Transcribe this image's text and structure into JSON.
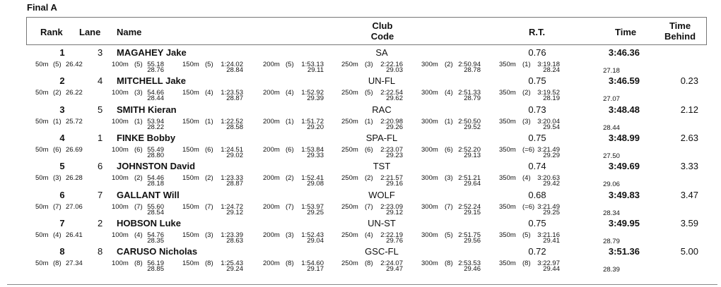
{
  "title": "Final A",
  "headers": {
    "rank": "Rank",
    "lane": "Lane",
    "name": "Name",
    "club_line1": "Club",
    "club_line2": "Code",
    "rt": "R.T.",
    "time": "Time",
    "behind_line1": "Time",
    "behind_line2": "Behind"
  },
  "results": [
    {
      "rank": "1",
      "lane": "3",
      "name": "MAGAHEY Jake",
      "club": "SA",
      "rt": "0.76",
      "time": "3:46.36",
      "behind": "",
      "final_split": "27.18",
      "splits": [
        {
          "label": "50m",
          "pos": "(5)",
          "time": "26.42",
          "lap": ""
        },
        {
          "label": "100m",
          "pos": "(5)",
          "time": "55.18",
          "lap": "28.76"
        },
        {
          "label": "150m",
          "pos": "(5)",
          "time": "1:24.02",
          "lap": "28.84"
        },
        {
          "label": "200m",
          "pos": "(5)",
          "time": "1:53.13",
          "lap": "29.11"
        },
        {
          "label": "250m",
          "pos": "(3)",
          "time": "2:22.16",
          "lap": "29.03"
        },
        {
          "label": "300m",
          "pos": "(2)",
          "time": "2:50.94",
          "lap": "28.78"
        },
        {
          "label": "350m",
          "pos": "(1)",
          "time": "3:19.18",
          "lap": "28.24"
        }
      ]
    },
    {
      "rank": "2",
      "lane": "4",
      "name": "MITCHELL Jake",
      "club": "UN-FL",
      "rt": "0.75",
      "time": "3:46.59",
      "behind": "0.23",
      "final_split": "27.07",
      "splits": [
        {
          "label": "50m",
          "pos": "(2)",
          "time": "26.22",
          "lap": ""
        },
        {
          "label": "100m",
          "pos": "(3)",
          "time": "54.66",
          "lap": "28.44"
        },
        {
          "label": "150m",
          "pos": "(4)",
          "time": "1:23.53",
          "lap": "28.87"
        },
        {
          "label": "200m",
          "pos": "(4)",
          "time": "1:52.92",
          "lap": "29.39"
        },
        {
          "label": "250m",
          "pos": "(5)",
          "time": "2:22.54",
          "lap": "29.62"
        },
        {
          "label": "300m",
          "pos": "(4)",
          "time": "2:51.33",
          "lap": "28.79"
        },
        {
          "label": "350m",
          "pos": "(2)",
          "time": "3:19.52",
          "lap": "28.19"
        }
      ]
    },
    {
      "rank": "3",
      "lane": "5",
      "name": "SMITH Kieran",
      "club": "RAC",
      "rt": "0.73",
      "time": "3:48.48",
      "behind": "2.12",
      "final_split": "28.44",
      "splits": [
        {
          "label": "50m",
          "pos": "(1)",
          "time": "25.72",
          "lap": ""
        },
        {
          "label": "100m",
          "pos": "(1)",
          "time": "53.94",
          "lap": "28.22"
        },
        {
          "label": "150m",
          "pos": "(1)",
          "time": "1:22.52",
          "lap": "28.58"
        },
        {
          "label": "200m",
          "pos": "(1)",
          "time": "1:51.72",
          "lap": "29.20"
        },
        {
          "label": "250m",
          "pos": "(1)",
          "time": "2:20.98",
          "lap": "29.26"
        },
        {
          "label": "300m",
          "pos": "(1)",
          "time": "2:50.50",
          "lap": "29.52"
        },
        {
          "label": "350m",
          "pos": "(3)",
          "time": "3:20.04",
          "lap": "29.54"
        }
      ]
    },
    {
      "rank": "4",
      "lane": "1",
      "name": "FINKE Bobby",
      "club": "SPA-FL",
      "rt": "0.75",
      "time": "3:48.99",
      "behind": "2.63",
      "final_split": "27.50",
      "splits": [
        {
          "label": "50m",
          "pos": "(6)",
          "time": "26.69",
          "lap": ""
        },
        {
          "label": "100m",
          "pos": "(6)",
          "time": "55.49",
          "lap": "28.80"
        },
        {
          "label": "150m",
          "pos": "(6)",
          "time": "1:24.51",
          "lap": "29.02"
        },
        {
          "label": "200m",
          "pos": "(6)",
          "time": "1:53.84",
          "lap": "29.33"
        },
        {
          "label": "250m",
          "pos": "(6)",
          "time": "2:23.07",
          "lap": "29.23"
        },
        {
          "label": "300m",
          "pos": "(6)",
          "time": "2:52.20",
          "lap": "29.13"
        },
        {
          "label": "350m",
          "pos": "(=6)",
          "time": "3:21.49",
          "lap": "29.29"
        }
      ]
    },
    {
      "rank": "5",
      "lane": "6",
      "name": "JOHNSTON David",
      "club": "TST",
      "rt": "0.74",
      "time": "3:49.69",
      "behind": "3.33",
      "final_split": "29.06",
      "splits": [
        {
          "label": "50m",
          "pos": "(3)",
          "time": "26.28",
          "lap": ""
        },
        {
          "label": "100m",
          "pos": "(2)",
          "time": "54.46",
          "lap": "28.18"
        },
        {
          "label": "150m",
          "pos": "(2)",
          "time": "1:23.33",
          "lap": "28.87"
        },
        {
          "label": "200m",
          "pos": "(2)",
          "time": "1:52.41",
          "lap": "29.08"
        },
        {
          "label": "250m",
          "pos": "(2)",
          "time": "2:21.57",
          "lap": "29.16"
        },
        {
          "label": "300m",
          "pos": "(3)",
          "time": "2:51.21",
          "lap": "29.64"
        },
        {
          "label": "350m",
          "pos": "(4)",
          "time": "3:20.63",
          "lap": "29.42"
        }
      ]
    },
    {
      "rank": "6",
      "lane": "7",
      "name": "GALLANT Will",
      "club": "WOLF",
      "rt": "0.68",
      "time": "3:49.83",
      "behind": "3.47",
      "final_split": "28.34",
      "splits": [
        {
          "label": "50m",
          "pos": "(7)",
          "time": "27.06",
          "lap": ""
        },
        {
          "label": "100m",
          "pos": "(7)",
          "time": "55.60",
          "lap": "28.54"
        },
        {
          "label": "150m",
          "pos": "(7)",
          "time": "1:24.72",
          "lap": "29.12"
        },
        {
          "label": "200m",
          "pos": "(7)",
          "time": "1:53.97",
          "lap": "29.25"
        },
        {
          "label": "250m",
          "pos": "(7)",
          "time": "2:23.09",
          "lap": "29.12"
        },
        {
          "label": "300m",
          "pos": "(7)",
          "time": "2:52.24",
          "lap": "29.15"
        },
        {
          "label": "350m",
          "pos": "(=6)",
          "time": "3:21.49",
          "lap": "29.25"
        }
      ]
    },
    {
      "rank": "7",
      "lane": "2",
      "name": "HOBSON Luke",
      "club": "UN-ST",
      "rt": "0.75",
      "time": "3:49.95",
      "behind": "3.59",
      "final_split": "28.79",
      "splits": [
        {
          "label": "50m",
          "pos": "(4)",
          "time": "26.41",
          "lap": ""
        },
        {
          "label": "100m",
          "pos": "(4)",
          "time": "54.76",
          "lap": "28.35"
        },
        {
          "label": "150m",
          "pos": "(3)",
          "time": "1:23.39",
          "lap": "28.63"
        },
        {
          "label": "200m",
          "pos": "(3)",
          "time": "1:52.43",
          "lap": "29.04"
        },
        {
          "label": "250m",
          "pos": "(4)",
          "time": "2:22.19",
          "lap": "29.76"
        },
        {
          "label": "300m",
          "pos": "(5)",
          "time": "2:51.75",
          "lap": "29.56"
        },
        {
          "label": "350m",
          "pos": "(5)",
          "time": "3:21.16",
          "lap": "29.41"
        }
      ]
    },
    {
      "rank": "8",
      "lane": "8",
      "name": "CARUSO Nicholas",
      "club": "GSC-FL",
      "rt": "0.72",
      "time": "3:51.36",
      "behind": "5.00",
      "final_split": "28.39",
      "splits": [
        {
          "label": "50m",
          "pos": "(8)",
          "time": "27.34",
          "lap": ""
        },
        {
          "label": "100m",
          "pos": "(8)",
          "time": "56.19",
          "lap": "28.85"
        },
        {
          "label": "150m",
          "pos": "(8)",
          "time": "1:25.43",
          "lap": "29.24"
        },
        {
          "label": "200m",
          "pos": "(8)",
          "time": "1:54.60",
          "lap": "29.17"
        },
        {
          "label": "250m",
          "pos": "(8)",
          "time": "2:24.07",
          "lap": "29.47"
        },
        {
          "label": "300m",
          "pos": "(8)",
          "time": "2:53.53",
          "lap": "29.46"
        },
        {
          "label": "350m",
          "pos": "(8)",
          "time": "3:22.97",
          "lap": "29.44"
        }
      ]
    }
  ]
}
